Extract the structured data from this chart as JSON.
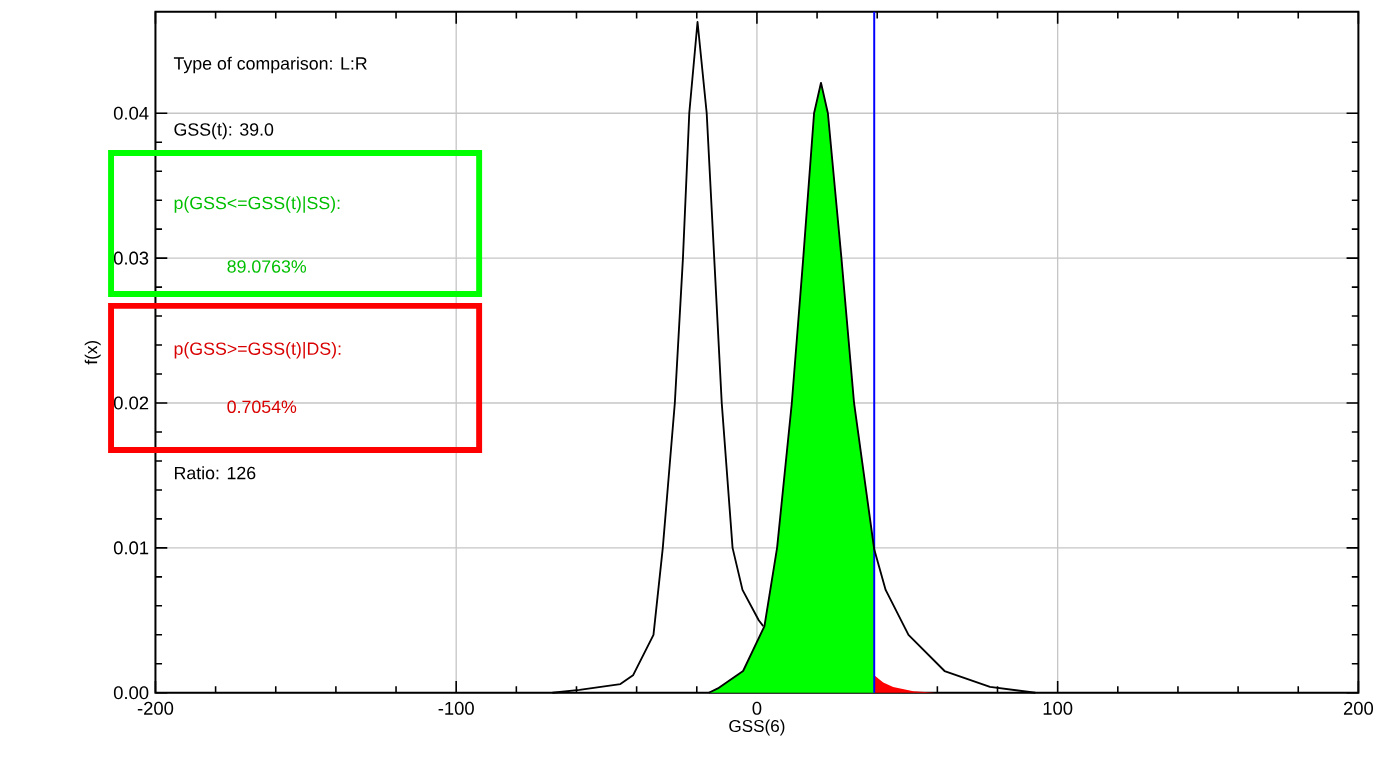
{
  "chart_data": {
    "type": "line",
    "xlabel": "GSS(6)",
    "ylabel": "f(x)",
    "annotations": [
      "Type of comparison: L:R",
      "GSS(t): 39.0",
      "p(GSS<=GSS(t)|SS):",
      "89.0763%",
      "p(GSS>=GSS(t)|DS):",
      "0.7054%",
      "Ratio: 126"
    ],
    "series": [
      {
        "color": "#000000",
        "x": [
          -68,
          -59,
          -45.4,
          -41.2,
          -34.4,
          -31.3,
          -27.3,
          -24.6,
          -22.5,
          -19.75,
          -16.7,
          -14.2,
          -11.7,
          -8.1,
          -4.8,
          0.6,
          2.1
        ],
        "values": [
          0,
          0.0002,
          0.0006,
          0.0012,
          0.004,
          0.01,
          0.02,
          0.03,
          0.04,
          0.0463,
          0.04,
          0.03,
          0.02,
          0.01,
          0.0071,
          0.005,
          0.0046
        ]
      },
      {
        "type": "area",
        "color": "#00ff00",
        "x": [
          -16,
          -13,
          -4.6,
          2.5,
          6.7,
          11.6,
          15.4,
          19,
          21.3,
          23.6,
          28.1,
          32.3,
          39
        ],
        "values": [
          0,
          0.0003,
          0.0015,
          0.0046,
          0.01,
          0.02,
          0.03,
          0.04,
          0.0421,
          0.04,
          0.03,
          0.02,
          0.0099
        ]
      },
      {
        "type": "area",
        "color": "#ff0000",
        "x": [
          39,
          42,
          45.3,
          52,
          59.5
        ],
        "values": [
          0.0012,
          0.0007,
          0.0004,
          0.0001,
          0
        ]
      },
      {
        "color": "#000000",
        "x": [
          -16,
          -13,
          -4.6,
          2.5,
          6.7,
          11.6,
          15.4,
          19,
          21.3,
          23.6,
          28.1,
          32.3,
          39,
          42.8,
          50.4,
          62.4,
          77.5,
          92.6
        ],
        "values": [
          0,
          0.0003,
          0.0015,
          0.0046,
          0.01,
          0.02,
          0.03,
          0.04,
          0.0421,
          0.04,
          0.03,
          0.02,
          0.0099,
          0.0071,
          0.004,
          0.0015,
          0.0004,
          0
        ]
      }
    ],
    "ref_lines": [
      {
        "axis": "x",
        "value": 39,
        "color": "#0000ff"
      }
    ],
    "xlim": [
      -200,
      200
    ],
    "ylim": [
      0,
      0.047
    ],
    "xticks": [
      -200,
      -100,
      0,
      100,
      200
    ],
    "yticks": [
      {
        "value": 0,
        "label": "0.00"
      },
      {
        "value": 0.01,
        "label": "0.01"
      },
      {
        "value": 0.02,
        "label": "0.02"
      },
      {
        "value": 0.03,
        "label": "0.03"
      },
      {
        "value": 0.04,
        "label": "0.04"
      }
    ],
    "grid": true,
    "marker": "none"
  }
}
